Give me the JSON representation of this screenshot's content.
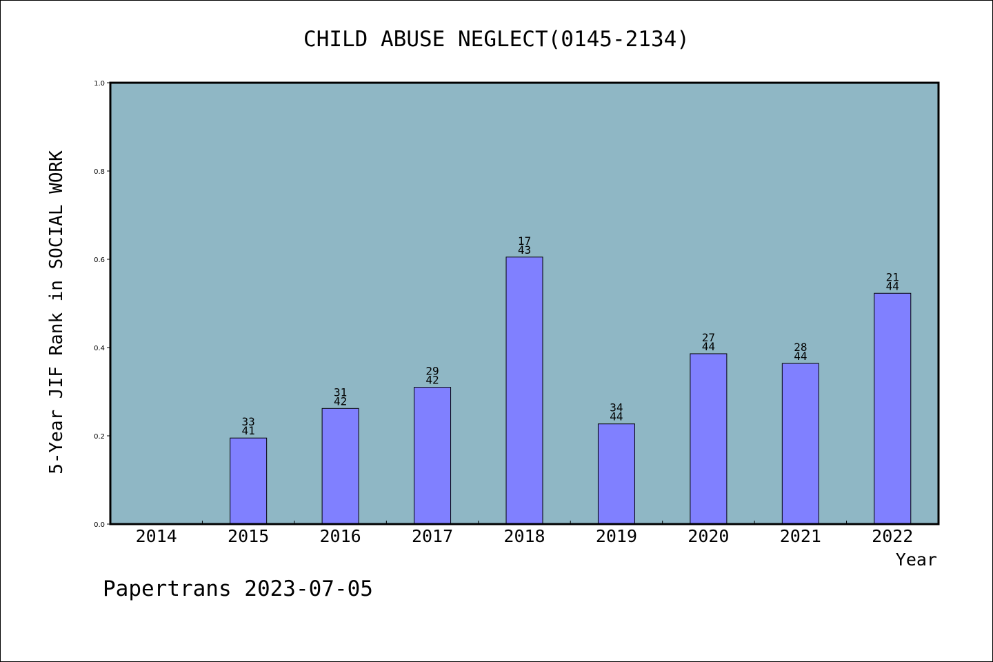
{
  "chart_data": {
    "type": "bar",
    "title": "CHILD ABUSE NEGLECT(0145-2134)",
    "xlabel": "Year",
    "ylabel": "5-Year JIF Rank in SOCIAL WORK",
    "categories": [
      "2014",
      "2015",
      "2016",
      "2017",
      "2018",
      "2019",
      "2020",
      "2021",
      "2022"
    ],
    "values": [
      null,
      0.195,
      0.262,
      0.31,
      0.605,
      0.227,
      0.386,
      0.364,
      0.523
    ],
    "rank_labels": [
      null,
      {
        "rank": "33",
        "total": "41"
      },
      {
        "rank": "31",
        "total": "42"
      },
      {
        "rank": "29",
        "total": "42"
      },
      {
        "rank": "17",
        "total": "43"
      },
      {
        "rank": "34",
        "total": "44"
      },
      {
        "rank": "27",
        "total": "44"
      },
      {
        "rank": "28",
        "total": "44"
      },
      {
        "rank": "21",
        "total": "44"
      }
    ],
    "ylim": [
      0,
      1.0
    ],
    "yticks": [
      "0.0",
      "0.2",
      "0.4",
      "0.6",
      "0.8",
      "1.0"
    ],
    "grid": false,
    "legend": "none",
    "colors": {
      "plot_background": "#8fb7c5",
      "bar_fill": "#8080ff",
      "bar_stroke": "#000000"
    }
  },
  "footer": {
    "watermark": "Papertrans 2023-07-05"
  }
}
